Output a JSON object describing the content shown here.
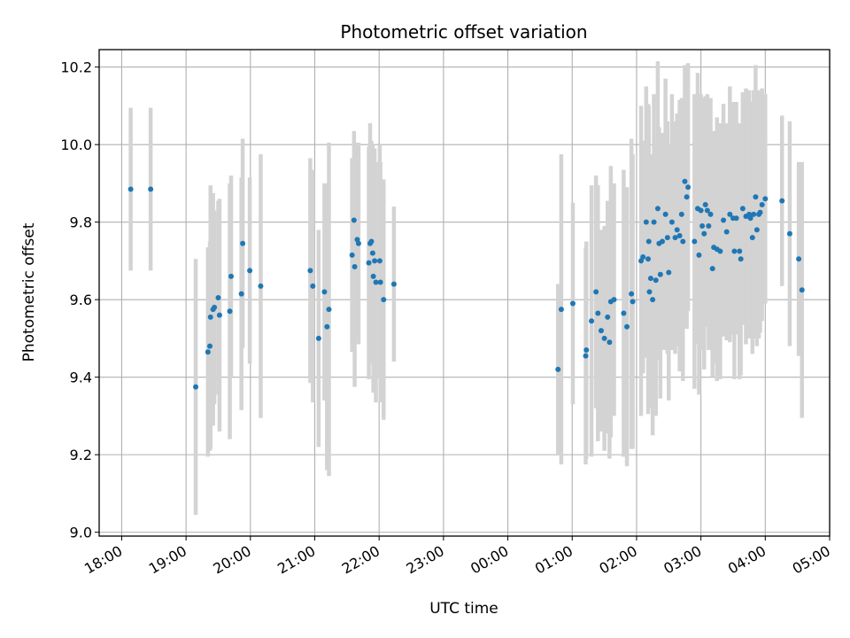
{
  "chart_data": {
    "type": "scatter",
    "title": "Photometric offset variation",
    "xlabel": "UTC time",
    "ylabel": "Photometric offset",
    "x_unit": "UTC time (hours since 18:00)",
    "xlim": [
      -0.35,
      11.0
    ],
    "ylim": [
      8.99,
      10.245
    ],
    "x_ticks": [
      0,
      1,
      2,
      3,
      4,
      5,
      6,
      7,
      8,
      9,
      10,
      11
    ],
    "x_tick_labels": [
      "18:00",
      "19:00",
      "20:00",
      "21:00",
      "22:00",
      "23:00",
      "00:00",
      "01:00",
      "02:00",
      "03:00",
      "04:00",
      "05:00"
    ],
    "y_ticks": [
      9.0,
      9.2,
      9.4,
      9.6,
      9.8,
      10.0,
      10.2
    ],
    "y_tick_labels": [
      "9.0",
      "9.2",
      "9.4",
      "9.6",
      "9.8",
      "10.0",
      "10.2"
    ],
    "grid": true,
    "colors": {
      "marker": "#1f77b4",
      "errorbar": "#d3d3d3",
      "grid": "#b0b0b0",
      "frame": "#000000"
    },
    "series": [
      {
        "points": [
          [
            0.14,
            9.885,
            0.21
          ],
          [
            0.45,
            9.885,
            0.21
          ],
          [
            1.15,
            9.375,
            0.33
          ],
          [
            1.34,
            9.465,
            0.27
          ],
          [
            1.37,
            9.48,
            0.27
          ],
          [
            1.38,
            9.555,
            0.34
          ],
          [
            1.42,
            9.575,
            0.3
          ],
          [
            1.44,
            9.58,
            0.25
          ],
          [
            1.5,
            9.605,
            0.25
          ],
          [
            1.52,
            9.56,
            0.3
          ],
          [
            1.68,
            9.57,
            0.33
          ],
          [
            1.7,
            9.66,
            0.26
          ],
          [
            1.86,
            9.615,
            0.3
          ],
          [
            1.88,
            9.745,
            0.27
          ],
          [
            1.99,
            9.675,
            0.24
          ],
          [
            2.16,
            9.635,
            0.34
          ],
          [
            2.93,
            9.675,
            0.29
          ],
          [
            2.97,
            9.635,
            0.3
          ],
          [
            3.06,
            9.5,
            0.28
          ],
          [
            3.15,
            9.62,
            0.28
          ],
          [
            3.19,
            9.53,
            0.37
          ],
          [
            3.22,
            9.575,
            0.43
          ],
          [
            3.58,
            9.715,
            0.25
          ],
          [
            3.61,
            9.805,
            0.23
          ],
          [
            3.62,
            9.685,
            0.31
          ],
          [
            3.66,
            9.755,
            0.25
          ],
          [
            3.68,
            9.745,
            0.26
          ],
          [
            3.84,
            9.695,
            0.3
          ],
          [
            3.86,
            9.745,
            0.31
          ],
          [
            3.88,
            9.75,
            0.26
          ],
          [
            3.9,
            9.72,
            0.28
          ],
          [
            3.91,
            9.66,
            0.3
          ],
          [
            3.93,
            9.7,
            0.29
          ],
          [
            3.95,
            9.645,
            0.31
          ],
          [
            4.01,
            9.7,
            0.3
          ],
          [
            4.02,
            9.645,
            0.31
          ],
          [
            4.07,
            9.6,
            0.31
          ],
          [
            4.23,
            9.64,
            0.2
          ],
          [
            6.78,
            9.42,
            0.22
          ],
          [
            6.83,
            9.575,
            0.4
          ],
          [
            7.01,
            9.59,
            0.26
          ],
          [
            7.21,
            9.455,
            0.28
          ],
          [
            7.22,
            9.47,
            0.28
          ],
          [
            7.3,
            9.545,
            0.35
          ],
          [
            7.37,
            9.62,
            0.3
          ],
          [
            7.4,
            9.565,
            0.33
          ],
          [
            7.45,
            9.52,
            0.26
          ],
          [
            7.5,
            9.5,
            0.29
          ],
          [
            7.55,
            9.555,
            0.3
          ],
          [
            7.58,
            9.49,
            0.3
          ],
          [
            7.6,
            9.595,
            0.35
          ],
          [
            7.65,
            9.6,
            0.3
          ],
          [
            7.8,
            9.565,
            0.37
          ],
          [
            7.85,
            9.53,
            0.36
          ],
          [
            7.92,
            9.615,
            0.4
          ],
          [
            7.94,
            9.595,
            0.38
          ],
          [
            8.07,
            9.7,
            0.4
          ],
          [
            8.1,
            9.71,
            0.3
          ],
          [
            8.15,
            9.8,
            0.35
          ],
          [
            8.18,
            9.705,
            0.4
          ],
          [
            8.19,
            9.75,
            0.35
          ],
          [
            8.2,
            9.62,
            0.3
          ],
          [
            8.22,
            9.655,
            0.32
          ],
          [
            8.25,
            9.6,
            0.35
          ],
          [
            8.27,
            9.8,
            0.33
          ],
          [
            8.3,
            9.65,
            0.35
          ],
          [
            8.33,
            9.835,
            0.38
          ],
          [
            8.35,
            9.745,
            0.3
          ],
          [
            8.37,
            9.665,
            0.32
          ],
          [
            8.4,
            9.75,
            0.28
          ],
          [
            8.45,
            9.82,
            0.35
          ],
          [
            8.48,
            9.76,
            0.3
          ],
          [
            8.5,
            9.67,
            0.33
          ],
          [
            8.55,
            9.8,
            0.33
          ],
          [
            8.6,
            9.76,
            0.3
          ],
          [
            8.63,
            9.78,
            0.3
          ],
          [
            8.67,
            9.765,
            0.35
          ],
          [
            8.7,
            9.82,
            0.3
          ],
          [
            8.72,
            9.75,
            0.36
          ],
          [
            8.75,
            9.905,
            0.3
          ],
          [
            8.78,
            9.865,
            0.34
          ],
          [
            8.8,
            9.89,
            0.32
          ],
          [
            8.9,
            9.75,
            0.38
          ],
          [
            8.95,
            9.835,
            0.35
          ],
          [
            8.97,
            9.715,
            0.36
          ],
          [
            9.0,
            9.83,
            0.3
          ],
          [
            9.02,
            9.79,
            0.32
          ],
          [
            9.05,
            9.77,
            0.35
          ],
          [
            9.07,
            9.845,
            0.28
          ],
          [
            9.1,
            9.83,
            0.3
          ],
          [
            9.12,
            9.79,
            0.32
          ],
          [
            9.15,
            9.82,
            0.3
          ],
          [
            9.18,
            9.68,
            0.28
          ],
          [
            9.2,
            9.735,
            0.3
          ],
          [
            9.25,
            9.73,
            0.34
          ],
          [
            9.3,
            9.725,
            0.33
          ],
          [
            9.35,
            9.805,
            0.3
          ],
          [
            9.4,
            9.775,
            0.28
          ],
          [
            9.45,
            9.82,
            0.33
          ],
          [
            9.5,
            9.81,
            0.3
          ],
          [
            9.52,
            9.725,
            0.33
          ],
          [
            9.55,
            9.81,
            0.3
          ],
          [
            9.6,
            9.725,
            0.33
          ],
          [
            9.62,
            9.705,
            0.3
          ],
          [
            9.65,
            9.835,
            0.3
          ],
          [
            9.7,
            9.815,
            0.33
          ],
          [
            9.75,
            9.82,
            0.32
          ],
          [
            9.77,
            9.81,
            0.3
          ],
          [
            9.8,
            9.76,
            0.3
          ],
          [
            9.82,
            9.82,
            0.32
          ],
          [
            9.85,
            9.865,
            0.34
          ],
          [
            9.87,
            9.78,
            0.3
          ],
          [
            9.9,
            9.82,
            0.32
          ],
          [
            9.92,
            9.825,
            0.31
          ],
          [
            9.95,
            9.845,
            0.3
          ],
          [
            10.0,
            9.86,
            0.27
          ],
          [
            10.26,
            9.855,
            0.22
          ],
          [
            10.38,
            9.77,
            0.29
          ],
          [
            10.52,
            9.705,
            0.25
          ],
          [
            10.57,
            9.625,
            0.33
          ]
        ]
      }
    ]
  }
}
